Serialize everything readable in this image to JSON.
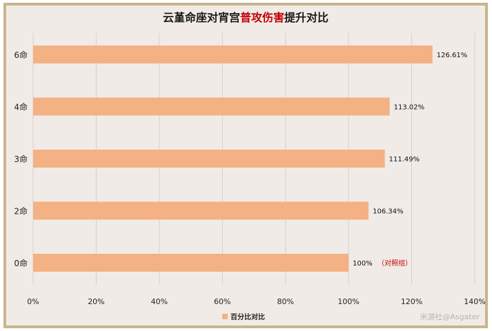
{
  "chart_data": {
    "type": "bar",
    "orientation": "horizontal",
    "title_parts": [
      {
        "text": "云堇命座对宵宫",
        "color": "#1a1a1a"
      },
      {
        "text": "普攻伤害",
        "color": "#c00000"
      },
      {
        "text": "提升对比",
        "color": "#1a1a1a"
      }
    ],
    "categories": [
      "6命",
      "4命",
      "3命",
      "2命",
      "0命"
    ],
    "series": [
      {
        "name": "百分比对比",
        "values": [
          126.61,
          113.02,
          111.49,
          106.34,
          100
        ],
        "labels": [
          "126.61%",
          "113.02%",
          "111.49%",
          "106.34%",
          "100%"
        ],
        "color": "#f4b183"
      }
    ],
    "annotations": [
      {
        "category": "0命",
        "text": "（对照组）",
        "color": "#c00000"
      }
    ],
    "xlim": [
      0,
      140
    ],
    "xticks": [
      0,
      20,
      40,
      60,
      80,
      100,
      120,
      140
    ],
    "xtick_labels": [
      "0%",
      "20%",
      "40%",
      "60%",
      "80%",
      "100%",
      "120%",
      "140%"
    ],
    "grid": true,
    "legend_position": "bottom-center",
    "watermark": "米游社@Asgater"
  }
}
